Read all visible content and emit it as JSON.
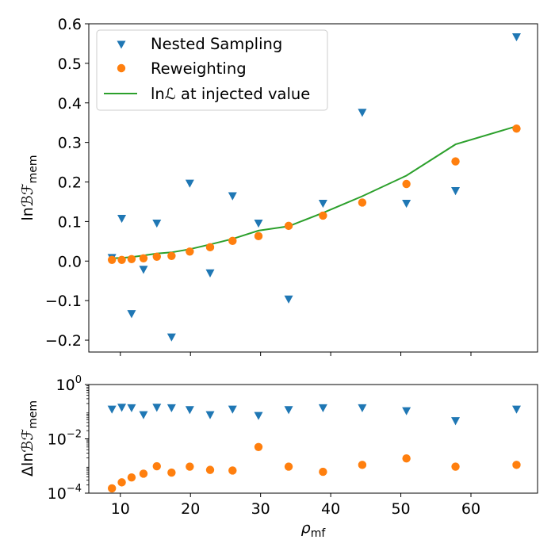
{
  "chart_data": [
    {
      "type": "scatter",
      "xlabel_main": "ρ",
      "xlabel_sub": "mf",
      "ylabel_main": "ln",
      "ylabel_script": "ℬℱ",
      "ylabel_sub": "mem",
      "xlim": [
        5.5,
        69.5
      ],
      "ylim": [
        -0.23,
        0.6
      ],
      "x_ticks": [
        10,
        20,
        30,
        40,
        50,
        60
      ],
      "y_ticks": [
        -0.2,
        -0.1,
        0.0,
        0.1,
        0.2,
        0.3,
        0.4,
        0.5,
        0.6
      ],
      "y_tick_labels": [
        "−0.2",
        "−0.1",
        "0.0",
        "0.1",
        "0.2",
        "0.3",
        "0.4",
        "0.5",
        "0.6"
      ],
      "colors": {
        "nested": "#1f77b4",
        "reweighting": "#ff7f0e",
        "likelihood": "#2ca02c"
      },
      "legend": {
        "position": "upper-left",
        "entries": [
          "Nested Sampling",
          "Reweighting",
          "ln"
        ],
        "likelihood_script": "ℒ",
        "likelihood_rest": " at injected value"
      },
      "series": [
        {
          "name": "Nested Sampling",
          "marker": "triangle-down",
          "x": [
            8.8,
            10.2,
            11.6,
            13.3,
            15.2,
            17.3,
            19.9,
            22.8,
            26.0,
            29.7,
            34.0,
            38.9,
            44.5,
            50.8,
            57.8,
            66.5
          ],
          "y": [
            0.008,
            0.107,
            -0.134,
            -0.022,
            0.095,
            -0.193,
            0.196,
            -0.031,
            0.164,
            0.095,
            -0.097,
            0.145,
            0.375,
            0.145,
            0.177,
            0.566
          ]
        },
        {
          "name": "Reweighting",
          "marker": "circle",
          "x": [
            8.8,
            10.2,
            11.6,
            13.3,
            15.2,
            17.3,
            19.9,
            22.8,
            26.0,
            29.7,
            34.0,
            38.9,
            44.5,
            50.8,
            57.8,
            66.5
          ],
          "y": [
            0.003,
            0.003,
            0.005,
            0.007,
            0.011,
            0.013,
            0.024,
            0.035,
            0.051,
            0.063,
            0.089,
            0.115,
            0.148,
            0.195,
            0.252,
            0.335
          ]
        },
        {
          "name": "ln",
          "marker": "line",
          "x": [
            8.8,
            10.2,
            11.6,
            13.3,
            15.2,
            17.3,
            19.9,
            22.8,
            26.0,
            29.7,
            34.0,
            38.9,
            44.5,
            50.8,
            57.8,
            66.5
          ],
          "y": [
            0.007,
            0.008,
            0.01,
            0.014,
            0.019,
            0.022,
            0.03,
            0.042,
            0.056,
            0.077,
            0.088,
            0.122,
            0.164,
            0.216,
            0.295,
            0.341
          ]
        }
      ]
    },
    {
      "type": "scatter",
      "ylabel_main": "Δln",
      "ylabel_script": "ℬℱ",
      "ylabel_sub": "mem",
      "y_scale": "log",
      "ylim": [
        0.0001,
        1
      ],
      "y_tick_labels": [
        {
          "base": "10",
          "exp": "0"
        },
        {
          "base": "10",
          "exp": "−2"
        },
        {
          "base": "10",
          "exp": "−4"
        }
      ],
      "y_tick_values": [
        1,
        0.01,
        0.0001
      ],
      "series": [
        {
          "name": "Nested Sampling",
          "marker": "triangle-down",
          "x": [
            8.8,
            10.2,
            11.6,
            13.3,
            15.2,
            17.3,
            19.9,
            22.8,
            26.0,
            29.7,
            34.0,
            38.9,
            44.5,
            50.8,
            57.8,
            66.5
          ],
          "y": [
            0.12,
            0.14,
            0.135,
            0.075,
            0.14,
            0.135,
            0.115,
            0.075,
            0.12,
            0.07,
            0.115,
            0.135,
            0.135,
            0.105,
            0.045,
            0.12
          ]
        },
        {
          "name": "Reweighting",
          "marker": "circle",
          "x": [
            8.8,
            10.2,
            11.6,
            13.3,
            15.2,
            17.3,
            19.9,
            22.8,
            26.0,
            29.7,
            34.0,
            38.9,
            44.5,
            50.8,
            57.8,
            66.5
          ],
          "y": [
            0.00015,
            0.00025,
            0.00038,
            0.00052,
            0.00098,
            0.00057,
            0.00095,
            0.00072,
            0.00068,
            0.005,
            0.00095,
            0.00061,
            0.0011,
            0.0019,
            0.00095,
            0.0011
          ]
        }
      ]
    }
  ]
}
